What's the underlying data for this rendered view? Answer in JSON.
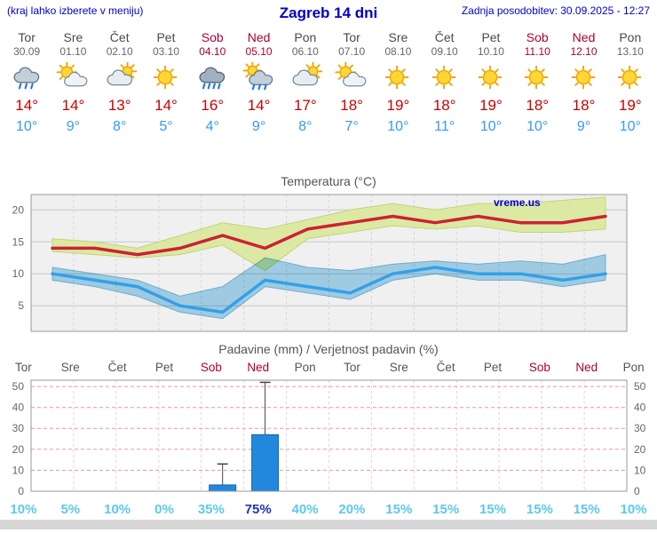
{
  "header": {
    "left": "(kraj lahko izberete v meniju)",
    "title": "Zagreb 14 dni",
    "right": "Zadnja posodobitev: 30.09.2025 - 12:27"
  },
  "watermark": "vreme.us",
  "colors": {
    "weekday": "#4a4a4a",
    "weekend": "#aa0033",
    "high": "#cc0000",
    "low": "#3399ff",
    "percent": "#5cc8f0",
    "percent_strong": "#2233bb",
    "max_line": "#cc2233",
    "max_band": "#dce9a3",
    "max_band_edge": "#c2d478",
    "min_line": "#33a0e8",
    "min_band": "#a8d8f0",
    "min_band_edge": "#76b8dc",
    "bar_fill": "#2288dd",
    "bar_stroke": "#1166aa",
    "whisker": "#444444",
    "grid_h": "#c9c9c9",
    "grid_v": "#d4d4d4",
    "precip_grid": "#e89999",
    "precip_grid_v": "#f2cccc",
    "frame": "#999999",
    "chart_bg": "#f0f0f0",
    "tick_text": "#666666"
  },
  "days": [
    {
      "name": "Tor",
      "date": "30.09",
      "weekend": false,
      "icon": "showers",
      "high": "14°",
      "low": "10°"
    },
    {
      "name": "Sre",
      "date": "01.10",
      "weekend": false,
      "icon": "partly",
      "high": "14°",
      "low": "9°"
    },
    {
      "name": "Čet",
      "date": "02.10",
      "weekend": false,
      "icon": "mostly-cloudy",
      "high": "13°",
      "low": "8°"
    },
    {
      "name": "Pet",
      "date": "03.10",
      "weekend": false,
      "icon": "sunny",
      "high": "14°",
      "low": "5°"
    },
    {
      "name": "Sob",
      "date": "04.10",
      "weekend": true,
      "icon": "rain",
      "high": "16°",
      "low": "4°"
    },
    {
      "name": "Ned",
      "date": "05.10",
      "weekend": true,
      "icon": "sun-rain",
      "high": "14°",
      "low": "9°"
    },
    {
      "name": "Pon",
      "date": "06.10",
      "weekend": false,
      "icon": "mostly-cloudy",
      "high": "17°",
      "low": "8°"
    },
    {
      "name": "Tor",
      "date": "07.10",
      "weekend": false,
      "icon": "partly",
      "high": "18°",
      "low": "7°"
    },
    {
      "name": "Sre",
      "date": "08.10",
      "weekend": false,
      "icon": "sunny",
      "high": "19°",
      "low": "10°"
    },
    {
      "name": "Čet",
      "date": "09.10",
      "weekend": false,
      "icon": "sunny",
      "high": "18°",
      "low": "11°"
    },
    {
      "name": "Pet",
      "date": "10.10",
      "weekend": false,
      "icon": "sunny",
      "high": "19°",
      "low": "10°"
    },
    {
      "name": "Sob",
      "date": "11.10",
      "weekend": true,
      "icon": "sunny",
      "high": "18°",
      "low": "10°"
    },
    {
      "name": "Ned",
      "date": "12.10",
      "weekend": true,
      "icon": "sunny",
      "high": "18°",
      "low": "9°"
    },
    {
      "name": "Pon",
      "date": "13.10",
      "weekend": false,
      "icon": "sunny",
      "high": "19°",
      "low": "10°"
    }
  ],
  "chart_data": [
    {
      "type": "line",
      "title": "Temperatura (°C)",
      "x_labels": [
        "Tor",
        "Sre",
        "Čet",
        "Pet",
        "Sob",
        "Ned",
        "Pon",
        "Tor",
        "Sre",
        "Čet",
        "Pet",
        "Sob",
        "Ned",
        "Pon"
      ],
      "ylim": [
        1,
        22.4
      ],
      "yticks": [
        5,
        10,
        15,
        20
      ],
      "grid": true,
      "series": [
        {
          "name": "max",
          "label": "maximum temperature (°C)",
          "values": [
            14,
            14,
            13,
            14,
            16,
            14,
            17,
            18,
            19,
            18,
            19,
            18,
            18,
            19
          ]
        },
        {
          "name": "max_band_high",
          "label": "max temperature band upper",
          "values": [
            15.5,
            15,
            14,
            16,
            18,
            17,
            18.5,
            20,
            21,
            20,
            21,
            21,
            21.5,
            22
          ]
        },
        {
          "name": "max_band_low",
          "label": "max temperature band lower",
          "values": [
            13.5,
            13,
            12.5,
            13,
            14.5,
            10.5,
            15.5,
            16.5,
            17.5,
            17,
            17.5,
            16.5,
            16.5,
            17
          ]
        },
        {
          "name": "min",
          "label": "minimum temperature (°C)",
          "values": [
            10,
            9,
            8,
            5,
            4,
            9,
            8,
            7,
            10,
            11,
            10,
            10,
            9,
            10
          ]
        },
        {
          "name": "min_band_high",
          "label": "min temperature band upper",
          "values": [
            11,
            10,
            9,
            6.5,
            8,
            12.5,
            11,
            10.5,
            11.5,
            12,
            11.5,
            12,
            11.5,
            13
          ]
        },
        {
          "name": "min_band_low",
          "label": "min temperature band lower",
          "values": [
            9,
            8,
            6.5,
            4,
            3,
            8,
            7,
            6,
            9,
            10,
            9,
            9,
            8,
            9
          ]
        }
      ]
    },
    {
      "type": "bar",
      "title": "Padavine (mm) / Verjetnost padavin (%)",
      "x_labels": [
        "Tor",
        "Sre",
        "Čet",
        "Pet",
        "Sob",
        "Ned",
        "Pon",
        "Tor",
        "Sre",
        "Čet",
        "Pet",
        "Sob",
        "Ned",
        "Pon"
      ],
      "x_weekend": [
        false,
        false,
        false,
        false,
        true,
        true,
        false,
        false,
        false,
        false,
        false,
        true,
        true,
        false
      ],
      "ylim": [
        0,
        53
      ],
      "yticks": [
        0,
        10,
        20,
        30,
        40,
        50
      ],
      "values_mm": [
        0,
        0,
        0,
        0,
        3,
        27,
        0,
        0,
        0,
        0,
        0,
        0,
        0,
        0
      ],
      "whisker_mm": [
        0,
        0,
        0,
        0,
        13,
        52,
        0,
        0,
        0,
        0,
        0,
        0,
        0,
        0
      ],
      "probabilities": [
        {
          "label": "10%",
          "strong": false
        },
        {
          "label": "5%",
          "strong": false
        },
        {
          "label": "10%",
          "strong": false
        },
        {
          "label": "0%",
          "strong": false
        },
        {
          "label": "35%",
          "strong": false
        },
        {
          "label": "75%",
          "strong": true
        },
        {
          "label": "40%",
          "strong": false
        },
        {
          "label": "20%",
          "strong": false
        },
        {
          "label": "15%",
          "strong": false
        },
        {
          "label": "15%",
          "strong": false
        },
        {
          "label": "15%",
          "strong": false
        },
        {
          "label": "15%",
          "strong": false
        },
        {
          "label": "15%",
          "strong": false
        },
        {
          "label": "10%",
          "strong": false
        }
      ]
    }
  ]
}
